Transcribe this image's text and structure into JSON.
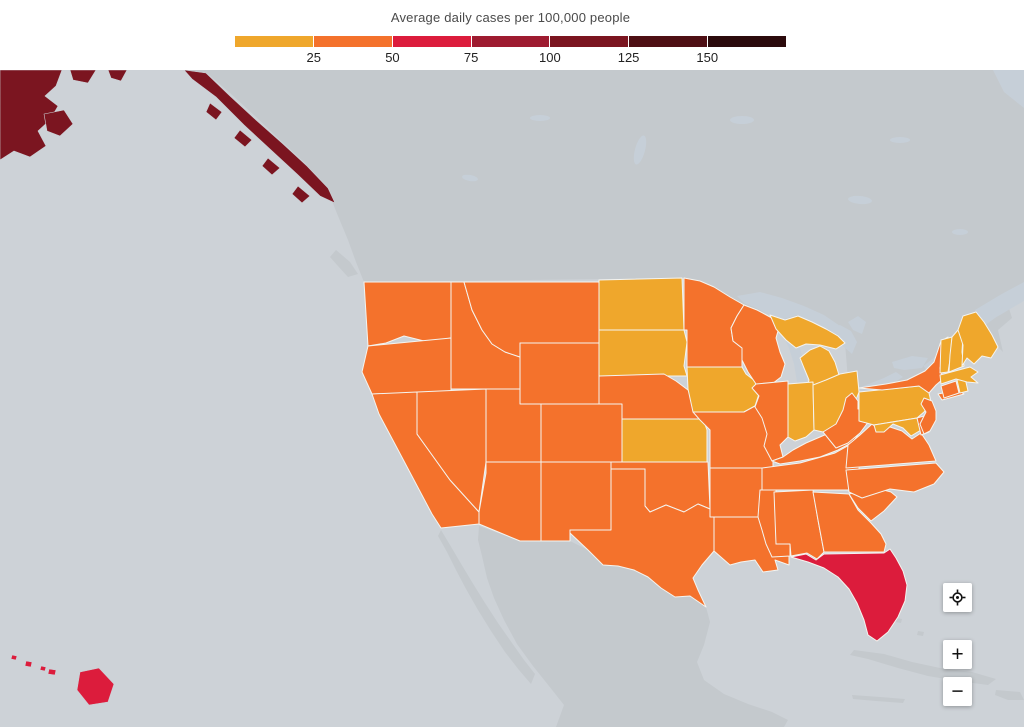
{
  "header": {
    "title": "Average daily cases per 100,000 people"
  },
  "legend": {
    "ticks": [
      "25",
      "50",
      "75",
      "100",
      "125",
      "150"
    ],
    "segment_colors": [
      "#efa72c",
      "#f4722c",
      "#dc1c3c",
      "#9e1b30",
      "#7b1520",
      "#4e0f14",
      "#2b0a0c"
    ],
    "bucket_ranges": [
      "0-25",
      "25-50",
      "50-75",
      "75-100",
      "100-125",
      "125-150",
      "150+"
    ]
  },
  "map": {
    "colors": {
      "ocean": "#cdd2d7",
      "land": "#c4c9cd",
      "lake": "#c6cfd8",
      "state_border": "#f5f4ef"
    },
    "states": [
      {
        "abbr": "WA",
        "name": "Washington",
        "bucket": 1,
        "value_range": "25-50"
      },
      {
        "abbr": "OR",
        "name": "Oregon",
        "bucket": 1,
        "value_range": "25-50"
      },
      {
        "abbr": "CA",
        "name": "California",
        "bucket": 1,
        "value_range": "25-50"
      },
      {
        "abbr": "NV",
        "name": "Nevada",
        "bucket": 1,
        "value_range": "25-50"
      },
      {
        "abbr": "ID",
        "name": "Idaho",
        "bucket": 1,
        "value_range": "25-50"
      },
      {
        "abbr": "MT",
        "name": "Montana",
        "bucket": 1,
        "value_range": "25-50"
      },
      {
        "abbr": "WY",
        "name": "Wyoming",
        "bucket": 1,
        "value_range": "25-50"
      },
      {
        "abbr": "UT",
        "name": "Utah",
        "bucket": 1,
        "value_range": "25-50"
      },
      {
        "abbr": "CO",
        "name": "Colorado",
        "bucket": 1,
        "value_range": "25-50"
      },
      {
        "abbr": "AZ",
        "name": "Arizona",
        "bucket": 1,
        "value_range": "25-50"
      },
      {
        "abbr": "NM",
        "name": "New Mexico",
        "bucket": 1,
        "value_range": "25-50"
      },
      {
        "abbr": "ND",
        "name": "North Dakota",
        "bucket": 0,
        "value_range": "0-25"
      },
      {
        "abbr": "SD",
        "name": "South Dakota",
        "bucket": 0,
        "value_range": "0-25"
      },
      {
        "abbr": "NE",
        "name": "Nebraska",
        "bucket": 1,
        "value_range": "25-50"
      },
      {
        "abbr": "KS",
        "name": "Kansas",
        "bucket": 0,
        "value_range": "0-25"
      },
      {
        "abbr": "OK",
        "name": "Oklahoma",
        "bucket": 1,
        "value_range": "25-50"
      },
      {
        "abbr": "TX",
        "name": "Texas",
        "bucket": 1,
        "value_range": "25-50"
      },
      {
        "abbr": "MN",
        "name": "Minnesota",
        "bucket": 1,
        "value_range": "25-50"
      },
      {
        "abbr": "IA",
        "name": "Iowa",
        "bucket": 0,
        "value_range": "0-25"
      },
      {
        "abbr": "MO",
        "name": "Missouri",
        "bucket": 1,
        "value_range": "25-50"
      },
      {
        "abbr": "AR",
        "name": "Arkansas",
        "bucket": 1,
        "value_range": "25-50"
      },
      {
        "abbr": "LA",
        "name": "Louisiana",
        "bucket": 1,
        "value_range": "25-50"
      },
      {
        "abbr": "WI",
        "name": "Wisconsin",
        "bucket": 1,
        "value_range": "25-50"
      },
      {
        "abbr": "IL",
        "name": "Illinois",
        "bucket": 1,
        "value_range": "25-50"
      },
      {
        "abbr": "MI",
        "name": "Michigan",
        "bucket": 0,
        "value_range": "0-25"
      },
      {
        "abbr": "IN",
        "name": "Indiana",
        "bucket": 0,
        "value_range": "0-25"
      },
      {
        "abbr": "OH",
        "name": "Ohio",
        "bucket": 0,
        "value_range": "0-25"
      },
      {
        "abbr": "KY",
        "name": "Kentucky",
        "bucket": 1,
        "value_range": "25-50"
      },
      {
        "abbr": "TN",
        "name": "Tennessee",
        "bucket": 1,
        "value_range": "25-50"
      },
      {
        "abbr": "MS",
        "name": "Mississippi",
        "bucket": 1,
        "value_range": "25-50"
      },
      {
        "abbr": "AL",
        "name": "Alabama",
        "bucket": 1,
        "value_range": "25-50"
      },
      {
        "abbr": "GA",
        "name": "Georgia",
        "bucket": 1,
        "value_range": "25-50"
      },
      {
        "abbr": "FL",
        "name": "Florida",
        "bucket": 2,
        "value_range": "50-75"
      },
      {
        "abbr": "SC",
        "name": "South Carolina",
        "bucket": 1,
        "value_range": "25-50"
      },
      {
        "abbr": "NC",
        "name": "North Carolina",
        "bucket": 1,
        "value_range": "25-50"
      },
      {
        "abbr": "VA",
        "name": "Virginia",
        "bucket": 1,
        "value_range": "25-50"
      },
      {
        "abbr": "WV",
        "name": "West Virginia",
        "bucket": 1,
        "value_range": "25-50"
      },
      {
        "abbr": "PA",
        "name": "Pennsylvania",
        "bucket": 0,
        "value_range": "0-25"
      },
      {
        "abbr": "MD",
        "name": "Maryland",
        "bucket": 0,
        "value_range": "0-25"
      },
      {
        "abbr": "DE",
        "name": "Delaware",
        "bucket": 1,
        "value_range": "25-50"
      },
      {
        "abbr": "NJ",
        "name": "New Jersey",
        "bucket": 1,
        "value_range": "25-50"
      },
      {
        "abbr": "NY",
        "name": "New York",
        "bucket": 1,
        "value_range": "25-50"
      },
      {
        "abbr": "CT",
        "name": "Connecticut",
        "bucket": 1,
        "value_range": "25-50"
      },
      {
        "abbr": "RI",
        "name": "Rhode Island",
        "bucket": 0,
        "value_range": "0-25"
      },
      {
        "abbr": "MA",
        "name": "Massachusetts",
        "bucket": 0,
        "value_range": "0-25"
      },
      {
        "abbr": "VT",
        "name": "Vermont",
        "bucket": 0,
        "value_range": "0-25"
      },
      {
        "abbr": "NH",
        "name": "New Hampshire",
        "bucket": 0,
        "value_range": "0-25"
      },
      {
        "abbr": "ME",
        "name": "Maine",
        "bucket": 0,
        "value_range": "0-25"
      },
      {
        "abbr": "AK",
        "name": "Alaska",
        "bucket": 4,
        "value_range": "100-125"
      },
      {
        "abbr": "HI",
        "name": "Hawaii",
        "bucket": 2,
        "value_range": "50-75"
      }
    ]
  },
  "controls": {
    "zoom_in": "+",
    "zoom_out": "−"
  }
}
